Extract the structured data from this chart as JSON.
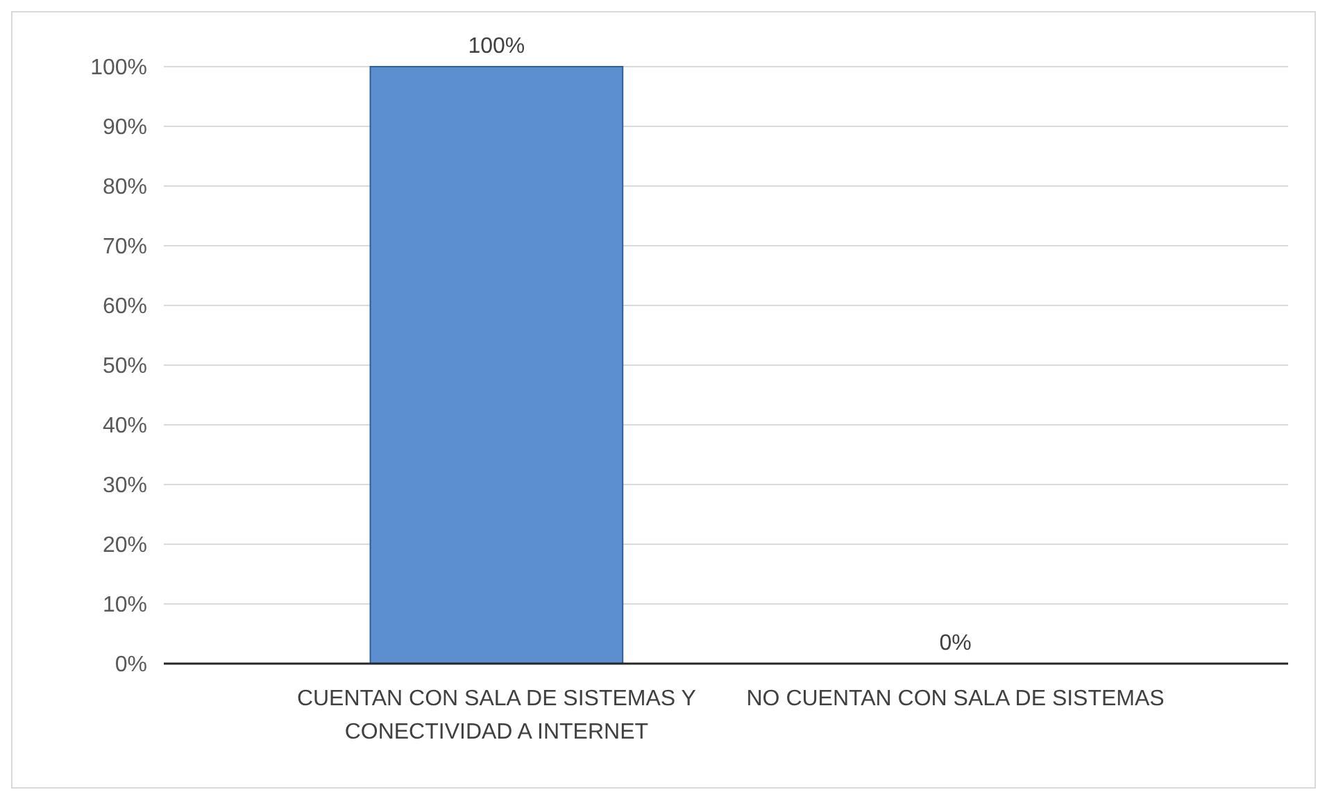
{
  "chart_data": {
    "type": "bar",
    "categories": [
      "CUENTAN CON SALA DE SISTEMAS Y CONECTIVIDAD A INTERNET",
      "NO CUENTAN CON SALA DE SISTEMAS"
    ],
    "values": [
      100,
      0
    ],
    "value_labels": [
      "100%",
      "0%"
    ],
    "color": "#5b8fd0",
    "ylim": [
      0,
      100
    ],
    "yticks": [
      {
        "value": 0,
        "label": "0%"
      },
      {
        "value": 10,
        "label": "10%"
      },
      {
        "value": 20,
        "label": "20%"
      },
      {
        "value": 30,
        "label": "30%"
      },
      {
        "value": 40,
        "label": "40%"
      },
      {
        "value": 50,
        "label": "50%"
      },
      {
        "value": 60,
        "label": "60%"
      },
      {
        "value": 70,
        "label": "70%"
      },
      {
        "value": 80,
        "label": "80%"
      },
      {
        "value": 90,
        "label": "90%"
      },
      {
        "value": 100,
        "label": "100%"
      }
    ],
    "grid": true
  }
}
